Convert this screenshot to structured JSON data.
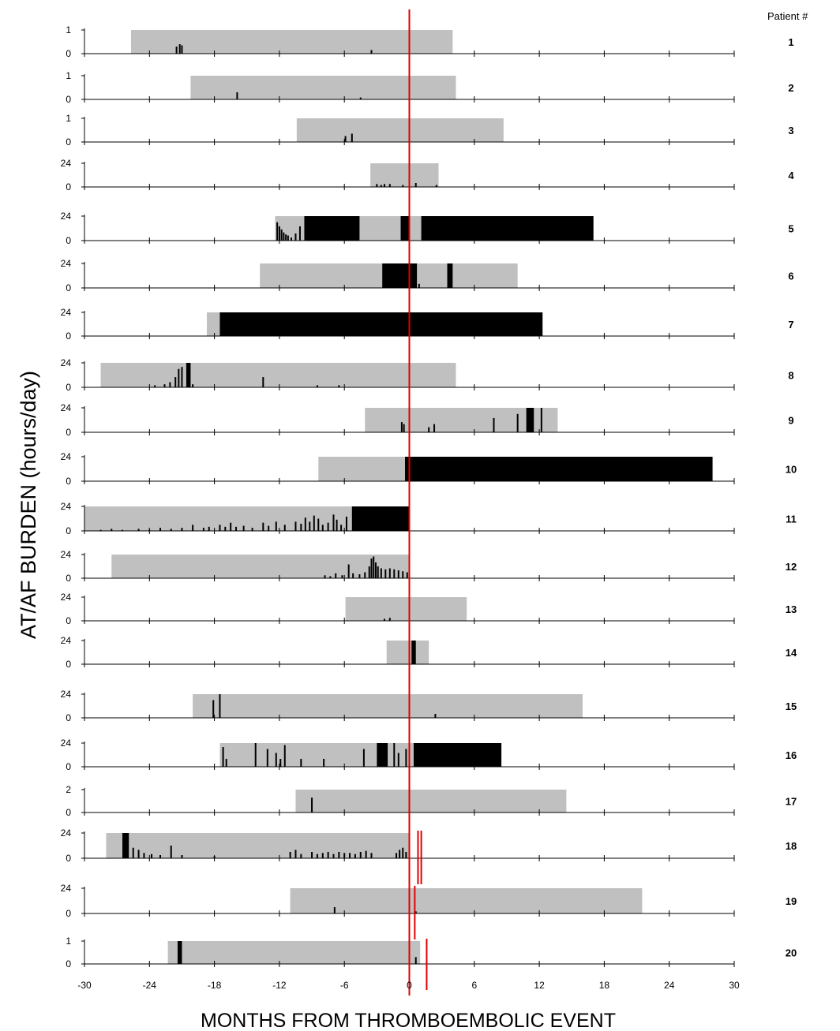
{
  "chart_data": {
    "type": "bar",
    "xlabel": "MONTHS FROM THROMBOEMBOLIC EVENT",
    "ylabel": "AT/AF BURDEN (hours/day)",
    "legend_header": "Patient #",
    "xlim": [
      -30,
      30
    ],
    "xticks": [
      -30,
      -24,
      -18,
      -12,
      -6,
      0,
      6,
      12,
      18,
      24,
      30
    ],
    "event_line_x": 0,
    "colors": {
      "monitoring": "#c0c0c0",
      "burden": "#000000",
      "event_line": "#e00000"
    },
    "patients": [
      {
        "id": "1",
        "ymax": 1,
        "ymax_label": "1",
        "monitoring": [
          -25.7,
          4
        ],
        "blocks": [],
        "spikes": [
          [
            -21.5,
            0.3
          ],
          [
            -21.2,
            0.4
          ],
          [
            -21,
            0.35
          ],
          [
            -3.5,
            0.15
          ]
        ],
        "extra_events": []
      },
      {
        "id": "2",
        "ymax": 1,
        "ymax_label": "1",
        "monitoring": [
          -20.2,
          4.3
        ],
        "blocks": [],
        "spikes": [
          [
            -15.9,
            0.3
          ],
          [
            -4.5,
            0.08
          ]
        ],
        "extra_events": []
      },
      {
        "id": "3",
        "ymax": 1,
        "ymax_label": "1",
        "monitoring": [
          -10.4,
          8.7
        ],
        "blocks": [],
        "spikes": [
          [
            -5.9,
            0.25
          ],
          [
            -5.3,
            0.35
          ]
        ],
        "extra_events": []
      },
      {
        "id": "4",
        "ymax": 24,
        "ymax_label": "24",
        "monitoring": [
          -3.6,
          2.7
        ],
        "blocks": [],
        "spikes": [
          [
            -3,
            3
          ],
          [
            -2.6,
            2
          ],
          [
            -2.3,
            3
          ],
          [
            -1.8,
            3
          ],
          [
            -0.6,
            2
          ],
          [
            0.6,
            4
          ],
          [
            2.5,
            2
          ]
        ],
        "extra_events": []
      },
      {
        "id": "5",
        "ymax": 24,
        "ymax_label": "24",
        "monitoring": [
          -12.4,
          17
        ],
        "blocks": [
          [
            -9.7,
            -4.6
          ],
          [
            -0.8,
            0
          ],
          [
            1.1,
            17
          ]
        ],
        "spikes": [
          [
            -12.2,
            18
          ],
          [
            -12,
            14
          ],
          [
            -11.8,
            11
          ],
          [
            -11.6,
            8
          ],
          [
            -11.4,
            6
          ],
          [
            -11.2,
            5
          ],
          [
            -10.9,
            3
          ],
          [
            -10.5,
            7
          ],
          [
            -10.1,
            14
          ]
        ],
        "extra_events": []
      },
      {
        "id": "6",
        "ymax": 24,
        "ymax_label": "24",
        "monitoring": [
          -13.8,
          10
        ],
        "blocks": [
          [
            -2.5,
            0.7
          ],
          [
            3.5,
            4
          ]
        ],
        "spikes": [
          [
            0.9,
            4
          ]
        ],
        "extra_events": []
      },
      {
        "id": "7",
        "ymax": 24,
        "ymax_label": "24",
        "monitoring": [
          -18.7,
          12.3
        ],
        "blocks": [
          [
            -17.5,
            12.3
          ]
        ],
        "spikes": [],
        "extra_events": []
      },
      {
        "id": "8",
        "ymax": 24,
        "ymax_label": "24",
        "monitoring": [
          -28.5,
          4.3
        ],
        "blocks": [
          [
            -20.6,
            -20.2
          ]
        ],
        "spikes": [
          [
            -23.5,
            2
          ],
          [
            -22.6,
            3
          ],
          [
            -22.1,
            5
          ],
          [
            -21.6,
            10
          ],
          [
            -21.3,
            18
          ],
          [
            -21,
            20
          ],
          [
            -20,
            3
          ],
          [
            -13.5,
            10
          ],
          [
            -8.5,
            2
          ],
          [
            -6.5,
            2
          ]
        ],
        "extra_events": []
      },
      {
        "id": "9",
        "ymax": 24,
        "ymax_label": "24",
        "monitoring": [
          -4.1,
          13.7
        ],
        "blocks": [
          [
            10.8,
            11.5
          ]
        ],
        "spikes": [
          [
            -0.7,
            10
          ],
          [
            -0.5,
            8
          ],
          [
            1.8,
            5
          ],
          [
            2.3,
            8
          ],
          [
            7.8,
            14
          ],
          [
            10,
            18
          ],
          [
            12.2,
            24
          ]
        ],
        "extra_events": []
      },
      {
        "id": "10",
        "ymax": 24,
        "ymax_label": "24",
        "monitoring": [
          -8.4,
          28
        ],
        "blocks": [
          [
            -0.4,
            28
          ]
        ],
        "spikes": [],
        "extra_events": []
      },
      {
        "id": "11",
        "ymax": 24,
        "ymax_label": "24",
        "monitoring": [
          -30,
          0
        ],
        "blocks": [
          [
            -5.3,
            0
          ]
        ],
        "spikes": [
          [
            -28.5,
            1
          ],
          [
            -27.5,
            2
          ],
          [
            -26.5,
            1
          ],
          [
            -25,
            2
          ],
          [
            -24,
            1
          ],
          [
            -23,
            3
          ],
          [
            -22,
            2
          ],
          [
            -21,
            3
          ],
          [
            -20,
            6
          ],
          [
            -19,
            3
          ],
          [
            -18.5,
            4
          ],
          [
            -17.5,
            6
          ],
          [
            -17,
            4
          ],
          [
            -16.5,
            8
          ],
          [
            -16,
            4
          ],
          [
            -15.3,
            5
          ],
          [
            -14.5,
            3
          ],
          [
            -13.5,
            8
          ],
          [
            -13,
            5
          ],
          [
            -12.3,
            9
          ],
          [
            -11.5,
            6
          ],
          [
            -10.5,
            9
          ],
          [
            -10,
            7
          ],
          [
            -9.6,
            13
          ],
          [
            -9.2,
            9
          ],
          [
            -8.8,
            15
          ],
          [
            -8.4,
            12
          ],
          [
            -8,
            6
          ],
          [
            -7.5,
            8
          ],
          [
            -7,
            16
          ],
          [
            -6.7,
            11
          ],
          [
            -6.3,
            6
          ],
          [
            -5.8,
            14
          ]
        ],
        "extra_events": []
      },
      {
        "id": "12",
        "ymax": 24,
        "ymax_label": "24",
        "monitoring": [
          -27.5,
          0
        ],
        "blocks": [],
        "spikes": [
          [
            -7.8,
            3
          ],
          [
            -7.3,
            2
          ],
          [
            -6.8,
            5
          ],
          [
            -6.2,
            3
          ],
          [
            -5.6,
            14
          ],
          [
            -5.2,
            5
          ],
          [
            -4.6,
            4
          ],
          [
            -4.1,
            6
          ],
          [
            -3.7,
            12
          ],
          [
            -3.5,
            20
          ],
          [
            -3.3,
            22
          ],
          [
            -3.1,
            16
          ],
          [
            -2.9,
            12
          ],
          [
            -2.6,
            10
          ],
          [
            -2.2,
            9
          ],
          [
            -1.8,
            10
          ],
          [
            -1.4,
            9
          ],
          [
            -1,
            8
          ],
          [
            -0.6,
            7
          ],
          [
            -0.2,
            6
          ]
        ],
        "extra_events": []
      },
      {
        "id": "13",
        "ymax": 24,
        "ymax_label": "24",
        "monitoring": [
          -5.9,
          5.3
        ],
        "blocks": [],
        "spikes": [
          [
            -2.3,
            2
          ],
          [
            -1.8,
            3
          ]
        ],
        "extra_events": []
      },
      {
        "id": "14",
        "ymax": 24,
        "ymax_label": "24",
        "monitoring": [
          -2.1,
          1.8
        ],
        "blocks": [
          [
            0.2,
            0.6
          ]
        ],
        "spikes": [],
        "extra_events": []
      },
      {
        "id": "15",
        "ymax": 24,
        "ymax_label": "24",
        "monitoring": [
          -20,
          16
        ],
        "blocks": [],
        "spikes": [
          [
            -18.1,
            18
          ],
          [
            -17.5,
            24
          ],
          [
            2.4,
            4
          ]
        ],
        "extra_events": []
      },
      {
        "id": "16",
        "ymax": 24,
        "ymax_label": "24",
        "monitoring": [
          -17.5,
          8.5
        ],
        "blocks": [
          [
            -3,
            -2
          ],
          [
            0.4,
            8.5
          ]
        ],
        "spikes": [
          [
            -17.2,
            20
          ],
          [
            -16.9,
            8
          ],
          [
            -14.2,
            24
          ],
          [
            -13.1,
            18
          ],
          [
            -12.3,
            14
          ],
          [
            -11.9,
            8
          ],
          [
            -11.5,
            22
          ],
          [
            -10,
            8
          ],
          [
            -7.9,
            8
          ],
          [
            -4.2,
            18
          ],
          [
            -1.4,
            24
          ],
          [
            -1,
            14
          ],
          [
            -0.3,
            18
          ]
        ],
        "extra_events": []
      },
      {
        "id": "17",
        "ymax": 2,
        "ymax_label": "2",
        "monitoring": [
          -10.5,
          14.5
        ],
        "blocks": [],
        "spikes": [
          [
            -9,
            1.3
          ]
        ],
        "extra_events": []
      },
      {
        "id": "18",
        "ymax": 24,
        "ymax_label": "24",
        "monitoring": [
          -28,
          0
        ],
        "blocks": [
          [
            -26.5,
            -25.9
          ]
        ],
        "spikes": [
          [
            -25.5,
            10
          ],
          [
            -25,
            8
          ],
          [
            -24.5,
            5
          ],
          [
            -23.8,
            4
          ],
          [
            -23,
            3
          ],
          [
            -22,
            12
          ],
          [
            -21,
            3
          ],
          [
            -18,
            2
          ],
          [
            -11,
            6
          ],
          [
            -10.5,
            8
          ],
          [
            -10,
            4
          ],
          [
            -9,
            6
          ],
          [
            -8.5,
            4
          ],
          [
            -8,
            5
          ],
          [
            -7.5,
            6
          ],
          [
            -7,
            4
          ],
          [
            -6.5,
            6
          ],
          [
            -6,
            5
          ],
          [
            -5.5,
            5
          ],
          [
            -5,
            4
          ],
          [
            -4.5,
            6
          ],
          [
            -4,
            7
          ],
          [
            -3.5,
            5
          ],
          [
            -1.2,
            5
          ],
          [
            -0.9,
            8
          ],
          [
            -0.6,
            10
          ],
          [
            -0.3,
            6
          ]
        ],
        "extra_events": [
          0.8,
          1.1
        ]
      },
      {
        "id": "19",
        "ymax": 24,
        "ymax_label": "24",
        "monitoring": [
          -11,
          21.5
        ],
        "blocks": [],
        "spikes": [
          [
            -6.9,
            6
          ],
          [
            0.6,
            2
          ]
        ],
        "extra_events": [
          0.5
        ]
      },
      {
        "id": "20",
        "ymax": 1,
        "ymax_label": "1",
        "monitoring": [
          -22.3,
          1
        ],
        "blocks": [
          [
            -21.4,
            -21
          ]
        ],
        "spikes": [
          [
            0.6,
            0.3
          ]
        ],
        "extra_events": [
          1.6
        ]
      }
    ]
  }
}
